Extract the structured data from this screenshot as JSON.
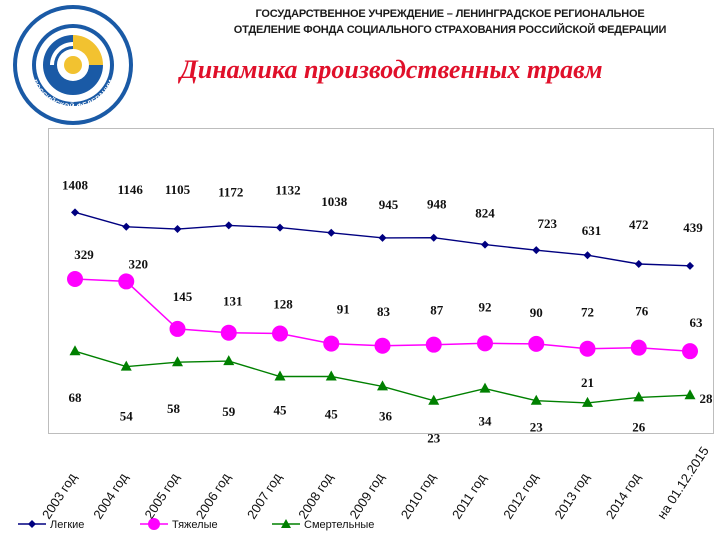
{
  "header": {
    "org_line1": "ГОСУДАРСТВЕННОЕ УЧРЕЖДЕНИЕ – ЛЕНИНГРАДСКОЕ РЕГИОНАЛЬНОЕ",
    "org_line2": "ОТДЕЛЕНИЕ ФОНДА СОЦИАЛЬНОГО СТРАХОВАНИЯ РОССИЙСКОЙ ФЕДЕРАЦИИ"
  },
  "logo": {
    "ring_text_top": "ФОНД СОЦИАЛЬНОГО СТРАХОВАНИЯ",
    "ring_text_bottom": "РОССИЙСКОЙ ФЕДЕРАЦИИ"
  },
  "colors": {
    "title": "#e0102a",
    "series_light": "#000080",
    "series_heavy": "#ff00ff",
    "series_fatal": "#008000",
    "logo_blue": "#1a5aa6",
    "logo_yellow": "#f2c230"
  },
  "chart_data": {
    "type": "line",
    "title": "Динамика производственных травм",
    "xlabel": "",
    "ylabel": "",
    "ylim": [
      0,
      1600
    ],
    "grid": false,
    "legend_position": "bottom",
    "categories": [
      "2003 год",
      "2004 год",
      "2005 год",
      "2006 год",
      "2007 год",
      "2008 год",
      "2009 год",
      "2010 год",
      "2011 год",
      "2012 год",
      "2013 год",
      "2014 год",
      "на 01.12.2015"
    ],
    "series": [
      {
        "name": "Легкие",
        "marker": "diamond",
        "values": [
          1408,
          1146,
          1105,
          1172,
          1132,
          1038,
          945,
          948,
          824,
          723,
          631,
          472,
          439
        ]
      },
      {
        "name": "Тяжелые",
        "marker": "circle",
        "values": [
          329,
          320,
          145,
          131,
          128,
          91,
          83,
          87,
          92,
          90,
          72,
          76,
          63
        ]
      },
      {
        "name": "Смертельные",
        "marker": "triangle",
        "values": [
          68,
          54,
          58,
          59,
          45,
          45,
          36,
          23,
          34,
          23,
          21,
          26,
          28
        ]
      }
    ]
  }
}
